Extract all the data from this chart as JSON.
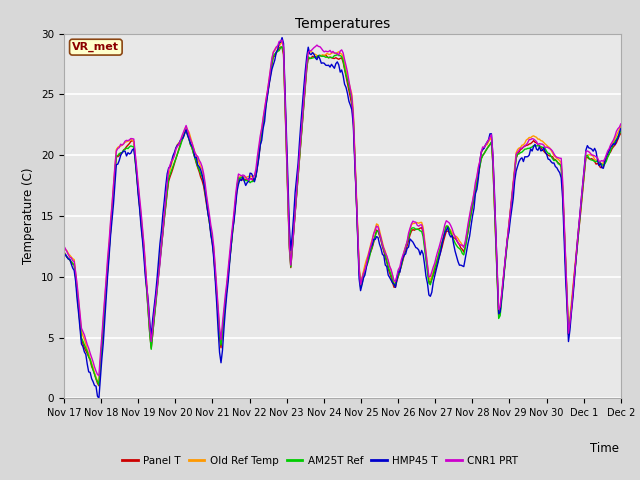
{
  "title": "Temperatures",
  "xlabel": "Time",
  "ylabel": "Temperature (C)",
  "ylim": [
    0,
    30
  ],
  "yticks": [
    0,
    5,
    10,
    15,
    20,
    25,
    30
  ],
  "x_labels": [
    "Nov 17",
    "Nov 18",
    "Nov 19",
    "Nov 20",
    "Nov 21",
    "Nov 22",
    "Nov 23",
    "Nov 24",
    "Nov 25",
    "Nov 26",
    "Nov 27",
    "Nov 28",
    "Nov 29",
    "Nov 30",
    "Dec 1",
    "Dec 2"
  ],
  "vr_met_label": "VR_met",
  "legend_labels": [
    "Panel T",
    "Old Ref Temp",
    "AM25T Ref",
    "HMP45 T",
    "CNR1 PRT"
  ],
  "line_colors": [
    "#cc0000",
    "#ff9900",
    "#00cc00",
    "#0000cc",
    "#cc00cc"
  ],
  "line_widths": [
    1.0,
    1.0,
    1.0,
    1.0,
    1.0
  ],
  "background_color": "#d8d8d8",
  "plot_bg_color": "#e8e8e8",
  "grid_color": "#ffffff",
  "figsize": [
    6.4,
    4.8
  ],
  "dpi": 100,
  "n_pts_per_day": 24,
  "n_days": 16,
  "base_pattern_x": [
    0,
    0.3,
    0.5,
    1.0,
    1.5,
    2.0,
    2.3,
    2.5,
    3.0,
    3.5,
    4.0,
    4.3,
    4.5,
    5.0,
    5.5,
    6.0,
    6.3,
    6.5,
    7.0,
    7.5,
    8.0,
    8.3,
    8.5,
    9.0,
    9.5,
    10.0,
    10.3,
    10.5,
    11.0,
    11.5,
    12.0,
    12.3,
    12.5,
    13.0,
    13.5,
    14.0,
    14.3,
    14.5,
    15.0,
    15.5,
    16.0
  ],
  "base_pattern_y": [
    12,
    11,
    5,
    1,
    20,
    21,
    12,
    4,
    18,
    22,
    18,
    12,
    4,
    18,
    18,
    28,
    29,
    10,
    28,
    28,
    28,
    24,
    9,
    14,
    9,
    14,
    14,
    9,
    14,
    12,
    20,
    21,
    6,
    20,
    21,
    20,
    19,
    5,
    20,
    19,
    22
  ]
}
